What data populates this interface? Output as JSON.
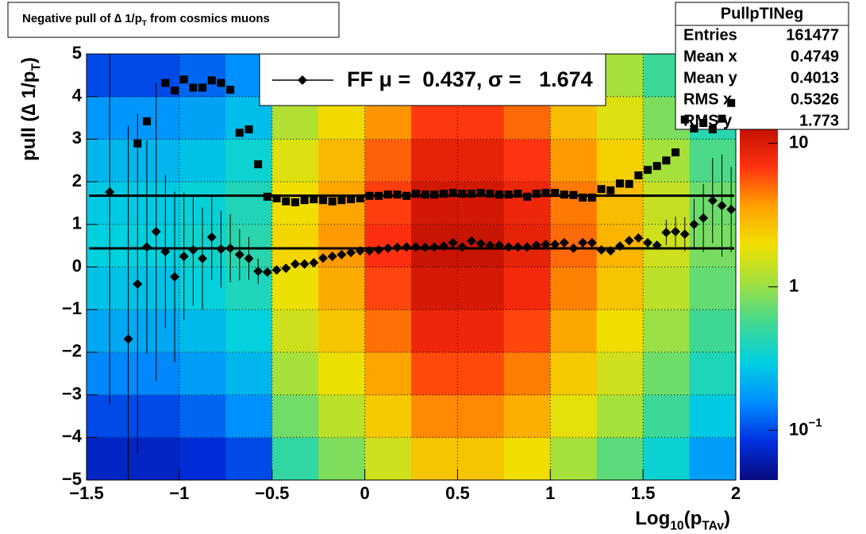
{
  "chart_data": {
    "type": "profile2d",
    "title": [
      {
        "text": "Negative pull of ∆ 1/p"
      },
      {
        "text": "T",
        "sub": true
      },
      {
        "text": " from cosmics muons"
      }
    ],
    "x_label": [
      {
        "text": "Log"
      },
      {
        "text": "10",
        "sub": true
      },
      {
        "text": "(p"
      },
      {
        "text": "TAv",
        "sub": true
      },
      {
        "text": ")"
      }
    ],
    "y_label": [
      {
        "text": "pull (∆ 1/p"
      },
      {
        "text": "T",
        "sub": true
      },
      {
        "text": ")"
      }
    ],
    "xlim": [
      -1.5,
      2
    ],
    "ylim": [
      -5,
      5
    ],
    "xticks": [
      {
        "value": -1.5,
        "label": "−1.5"
      },
      {
        "value": -1,
        "label": "−1"
      },
      {
        "value": -0.5,
        "label": "−0.5"
      },
      0,
      0.5,
      1,
      1.5,
      2
    ],
    "yticks": [
      {
        "value": -5,
        "label": "−5"
      },
      {
        "value": -4,
        "label": "−4"
      },
      {
        "value": -3,
        "label": "−3"
      },
      {
        "value": -2,
        "label": "−2"
      },
      {
        "value": -1,
        "label": "−1"
      },
      0,
      1,
      2,
      3,
      4,
      5
    ],
    "grid": true,
    "heatmap": {
      "xbins": [
        -1.5,
        -1.25,
        -1,
        -0.75,
        -0.5,
        -0.25,
        0,
        0.25,
        0.5,
        0.75,
        1,
        1.25,
        1.5,
        1.75,
        2
      ],
      "ybins": [
        -5,
        -4,
        -3,
        -2,
        -1,
        0,
        1,
        2,
        3,
        4,
        5
      ],
      "z": [
        [
          0.07,
          0.07,
          0.08,
          0.1,
          0.48,
          0.84,
          1.5,
          2.6,
          2.6,
          2,
          1.1,
          0.66,
          0.33,
          0.18
        ],
        [
          0.1,
          0.1,
          0.12,
          0.16,
          0.77,
          1.3,
          2.5,
          4.2,
          4.2,
          3.2,
          1.8,
          1.1,
          0.53,
          0.28
        ],
        [
          0.15,
          0.15,
          0.18,
          0.23,
          1.1,
          1.9,
          3.5,
          6,
          6,
          4.5,
          2.5,
          1.5,
          0.75,
          0.4
        ],
        [
          0.2,
          0.2,
          0.24,
          0.31,
          1.5,
          2.6,
          4.8,
          8.2,
          8.2,
          6.1,
          3.4,
          2,
          1,
          0.54
        ],
        [
          0.26,
          0.26,
          0.31,
          0.4,
          1.9,
          3.3,
          6.2,
          10.6,
          10.6,
          7.9,
          4.4,
          2.6,
          1.3,
          0.7
        ],
        [
          0.3,
          0.3,
          0.35,
          0.45,
          2.2,
          3.8,
          7,
          12,
          12,
          9,
          5,
          3,
          1.5,
          0.8
        ],
        [
          0.28,
          0.28,
          0.32,
          0.41,
          2,
          3.5,
          6.4,
          11,
          11,
          8.3,
          4.6,
          2.8,
          1.4,
          0.74
        ],
        [
          0.23,
          0.23,
          0.26,
          0.34,
          1.7,
          2.9,
          5.3,
          9,
          9,
          6.8,
          3.8,
          2.3,
          1.1,
          0.6
        ],
        [
          0.17,
          0.17,
          0.19,
          0.25,
          1.2,
          2.1,
          3.9,
          6.6,
          6.6,
          5,
          2.8,
          1.7,
          0.83,
          0.44
        ],
        [
          0.1,
          0.1,
          0.12,
          0.16,
          0.77,
          1.3,
          2.5,
          4.2,
          4.2,
          3.2,
          1.8,
          1.1,
          0.53,
          0.28
        ]
      ],
      "zlim": [
        0.045,
        13
      ],
      "zlog": true,
      "zticks": [
        {
          "value": 0.1,
          "label": "10",
          "exponent": "−1"
        },
        1,
        10
      ],
      "colormap": [
        "#0b0b80",
        "#0030e0",
        "#0090ff",
        "#00d0e0",
        "#40d890",
        "#a0e040",
        "#f0e000",
        "#ffa000",
        "#ff3010",
        "#c01000"
      ]
    },
    "x": [
      -1.375,
      -1.325,
      -1.275,
      -1.225,
      -1.175,
      -1.125,
      -1.075,
      -1.025,
      -0.975,
      -0.925,
      -0.875,
      -0.825,
      -0.775,
      -0.725,
      -0.675,
      -0.625,
      -0.575,
      -0.525,
      -0.475,
      -0.425,
      -0.375,
      -0.325,
      -0.275,
      -0.225,
      -0.175,
      -0.125,
      -0.075,
      -0.025,
      0.025,
      0.075,
      0.125,
      0.175,
      0.225,
      0.275,
      0.325,
      0.375,
      0.425,
      0.475,
      0.525,
      0.575,
      0.625,
      0.675,
      0.725,
      0.775,
      0.825,
      0.875,
      0.925,
      0.975,
      1.025,
      1.075,
      1.125,
      1.175,
      1.225,
      1.275,
      1.325,
      1.375,
      1.425,
      1.475,
      1.525,
      1.575,
      1.625,
      1.675,
      1.725,
      1.775,
      1.825,
      1.875,
      1.925,
      1.975
    ],
    "series": [
      {
        "marker": "diamond",
        "color": "#000000",
        "values": [
          1.76,
          null,
          -1.69,
          -0.4,
          0.47,
          0.83,
          0.36,
          -0.23,
          0.25,
          0.4,
          0.2,
          0.7,
          0.42,
          0.44,
          0.29,
          0.2,
          -0.1,
          -0.12,
          -0.07,
          -0.03,
          0.07,
          0.07,
          0.1,
          0.21,
          0.25,
          0.29,
          0.34,
          0.38,
          0.38,
          0.4,
          0.44,
          0.46,
          0.47,
          0.47,
          0.46,
          0.47,
          0.49,
          0.57,
          0.47,
          0.61,
          0.55,
          0.51,
          0.51,
          0.47,
          0.47,
          0.47,
          0.51,
          0.53,
          0.53,
          0.57,
          0.44,
          0.57,
          0.57,
          0.4,
          0.38,
          0.49,
          0.62,
          0.68,
          0.57,
          0.51,
          0.81,
          0.83,
          0.77,
          1.0,
          1.15,
          1.56,
          1.44,
          1.35
        ],
        "errors": [
          5,
          null,
          5,
          4,
          2.5,
          3.5,
          1.8,
          2.0,
          1.5,
          1.3,
          1.2,
          1.0,
          0.9,
          0.8,
          0.6,
          0.5,
          0.3,
          null,
          null,
          null,
          null,
          null,
          null,
          null,
          null,
          null,
          null,
          null,
          null,
          null,
          null,
          null,
          null,
          null,
          null,
          null,
          null,
          null,
          null,
          null,
          null,
          null,
          null,
          null,
          null,
          null,
          null,
          null,
          null,
          null,
          null,
          null,
          null,
          null,
          null,
          null,
          null,
          null,
          null,
          null,
          0.3,
          0.35,
          0.4,
          0.6,
          0.8,
          1.0,
          1.2,
          1.0
        ]
      },
      {
        "marker": "square",
        "color": "#000000",
        "values": [
          null,
          null,
          null,
          2.9,
          3.42,
          null,
          4.32,
          4.14,
          4.4,
          4.21,
          4.21,
          4.38,
          4.32,
          4.16,
          3.15,
          3.23,
          2.41,
          1.65,
          1.61,
          1.54,
          1.52,
          1.57,
          1.59,
          1.57,
          1.54,
          1.57,
          1.59,
          1.61,
          1.67,
          1.67,
          1.7,
          1.7,
          1.67,
          1.72,
          1.7,
          1.7,
          1.72,
          1.74,
          1.72,
          1.72,
          1.74,
          1.72,
          1.7,
          1.7,
          1.72,
          1.65,
          1.72,
          1.74,
          1.74,
          1.7,
          1.69,
          1.63,
          1.63,
          1.83,
          1.8,
          1.96,
          1.95,
          2.15,
          2.28,
          2.37,
          2.5,
          2.69,
          3.46,
          3.25,
          3.38,
          3.23,
          3.48,
          3.85
        ]
      }
    ],
    "fit_lines": [
      0.437,
      1.674
    ],
    "legend": {
      "label": "FF μ =  0.437, σ =   1.674",
      "marker": "diamond",
      "color": "#000000"
    },
    "stats": {
      "title": "PullpTINeg",
      "rows": [
        [
          "Entries",
          "161477"
        ],
        [
          "Mean x",
          "0.4749"
        ],
        [
          "Mean y",
          "0.4013"
        ],
        [
          "RMS x",
          "0.5326"
        ],
        [
          "RMS y",
          "1.773"
        ]
      ]
    }
  }
}
